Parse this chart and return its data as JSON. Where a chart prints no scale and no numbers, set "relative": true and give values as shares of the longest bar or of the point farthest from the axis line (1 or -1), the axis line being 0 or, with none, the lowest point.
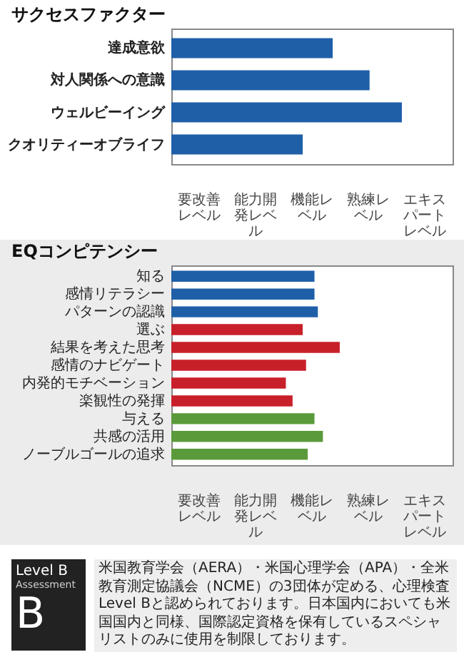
{
  "chart_data": [
    {
      "type": "bar",
      "orientation": "horizontal",
      "relative": true,
      "title": "サクセスファクター",
      "categories": [
        "達成意欲",
        "対人関係への意識",
        "ウェルビーイング",
        "クオリティーオブライフ"
      ],
      "values": [
        0.7,
        0.86,
        1,
        0.57
      ],
      "colors": [
        "#1f5fa8",
        "#1f5fa8",
        "#1f5fa8",
        "#1f5fa8"
      ],
      "annotations": [
        "要改善レベル",
        "能力開発レベル",
        "機能レベル",
        "熟練レベル",
        "エキスパートレベル"
      ]
    },
    {
      "type": "bar",
      "orientation": "horizontal",
      "relative": true,
      "title": "EQコンピテンシー",
      "categories": [
        "知る",
        "感情リテラシー",
        "パターンの認識",
        "選ぶ",
        "結果を考えた思考",
        "感情のナビゲート",
        "内発的モチベーション",
        "楽観性の発揮",
        "与える",
        "共感の活用",
        "ノーブルゴールの追求"
      ],
      "values": [
        0.85,
        0.85,
        0.87,
        0.78,
        1,
        0.8,
        0.68,
        0.72,
        0.85,
        0.9,
        0.81
      ],
      "colors": [
        "#1f5fa8",
        "#1f5fa8",
        "#1f5fa8",
        "#c8202a",
        "#c8202a",
        "#c8202a",
        "#c8202a",
        "#c8202a",
        "#5a9a3a",
        "#5a9a3a",
        "#5a9a3a"
      ],
      "annotations": [
        "要改善レベル",
        "能力開発レベル",
        "機能レベル",
        "熟練レベル",
        "エキスパートレベル",
        "Level B",
        "Assessment",
        "B",
        "米国教育学会（AERA）・米国心理学会（APA）・全米教育測定協議会（NCME）の3団体が定める、心理検査Level Bと認められております。日本国内においても米国国内と同様、国際認定資格を保有しているスペシャリストのみに使用を制限しております。"
      ]
    }
  ]
}
